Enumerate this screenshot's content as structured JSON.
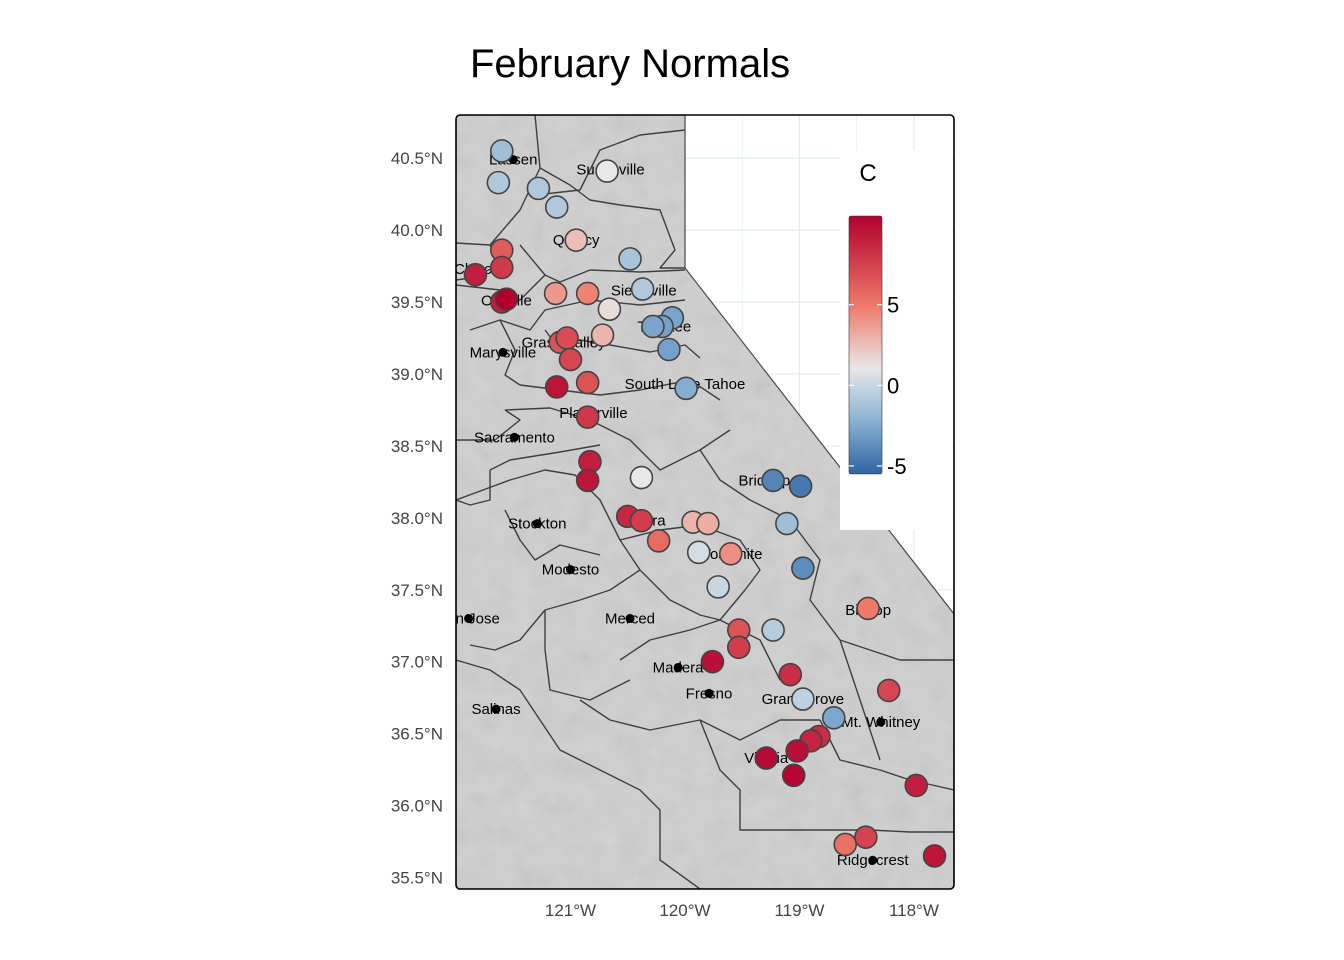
{
  "title": "February Normals",
  "legend": {
    "title": "C",
    "ticks": [
      {
        "value": -5,
        "label": "-5"
      },
      {
        "value": 0,
        "label": "0"
      },
      {
        "value": 5,
        "label": "5"
      }
    ],
    "range": [
      -5.5,
      10.5
    ],
    "colors": {
      "low": "#2f65a3",
      "mid": "#e8e8e8",
      "high": "#b2002e"
    }
  },
  "axes": {
    "x_ticks": [
      {
        "value": -121,
        "label": "121°W"
      },
      {
        "value": -120,
        "label": "120°W"
      },
      {
        "value": -119,
        "label": "119°W"
      },
      {
        "value": -118,
        "label": "118°W"
      }
    ],
    "y_ticks": [
      {
        "value": 40.5,
        "label": "40.5°N"
      },
      {
        "value": 40.0,
        "label": "40.0°N"
      },
      {
        "value": 39.5,
        "label": "39.5°N"
      },
      {
        "value": 39.0,
        "label": "39.0°N"
      },
      {
        "value": 38.5,
        "label": "38.5°N"
      },
      {
        "value": 38.0,
        "label": "38.0°N"
      },
      {
        "value": 37.5,
        "label": "37.5°N"
      },
      {
        "value": 37.0,
        "label": "37.0°N"
      },
      {
        "value": 36.5,
        "label": "36.5°N"
      },
      {
        "value": 36.0,
        "label": "36.0°N"
      },
      {
        "value": 35.5,
        "label": "35.5°N"
      }
    ],
    "xlim": [
      -122.0,
      -117.65
    ],
    "ylim": [
      35.42,
      40.8
    ]
  },
  "cities": [
    {
      "name": "Susanville",
      "label": "Susanville",
      "lon": -120.65,
      "lat": 40.42
    },
    {
      "name": "Lassen",
      "label": "Lassen",
      "lon": -121.5,
      "lat": 40.49
    },
    {
      "name": "Quincy",
      "label": "Quincy",
      "lon": -120.95,
      "lat": 39.93
    },
    {
      "name": "Chico",
      "label": "Chico",
      "lon": -121.85,
      "lat": 39.73
    },
    {
      "name": "Oroville",
      "label": "Oroville",
      "lon": -121.56,
      "lat": 39.51
    },
    {
      "name": "Sierraville",
      "label": "Sierraville",
      "lon": -120.36,
      "lat": 39.58
    },
    {
      "name": "Truckee",
      "label": "Truckee",
      "lon": -120.18,
      "lat": 39.33
    },
    {
      "name": "Grass Valley",
      "label": "Grass Valley",
      "lon": -121.06,
      "lat": 39.22
    },
    {
      "name": "Marysville",
      "label": "Marysville",
      "lon": -121.59,
      "lat": 39.15
    },
    {
      "name": "South Lake Tahoe",
      "label": "South Lake Tahoe",
      "lon": -120.0,
      "lat": 38.93
    },
    {
      "name": "Placerville",
      "label": "Placerville",
      "lon": -120.8,
      "lat": 38.73
    },
    {
      "name": "Sacramento",
      "label": "Sacramento",
      "lon": -121.49,
      "lat": 38.56
    },
    {
      "name": "Bridgeport",
      "label": "Bridgeport",
      "lon": -119.23,
      "lat": 38.26
    },
    {
      "name": "Sonora",
      "label": "Sonora",
      "lon": -120.38,
      "lat": 37.98
    },
    {
      "name": "Stockton",
      "label": "Stockton",
      "lon": -121.29,
      "lat": 37.96
    },
    {
      "name": "Yosemite",
      "label": "Yosemite",
      "lon": -119.59,
      "lat": 37.75
    },
    {
      "name": "Modesto",
      "label": "Modesto",
      "lon": -121.0,
      "lat": 37.64
    },
    {
      "name": "Bishop",
      "label": "Bishop",
      "lon": -118.4,
      "lat": 37.36
    },
    {
      "name": "San Jose",
      "label": "San Jose",
      "lon": -121.89,
      "lat": 37.3
    },
    {
      "name": "Merced",
      "label": "Merced",
      "lon": -120.48,
      "lat": 37.3
    },
    {
      "name": "Madera",
      "label": "Madera",
      "lon": -120.06,
      "lat": 36.96
    },
    {
      "name": "Fresno",
      "label": "Fresno",
      "lon": -119.79,
      "lat": 36.78
    },
    {
      "name": "Grant Grove",
      "label": "Grant Grove",
      "lon": -118.97,
      "lat": 36.74
    },
    {
      "name": "Salinas",
      "label": "Salinas",
      "lon": -121.65,
      "lat": 36.67
    },
    {
      "name": "Mt. Whitney",
      "label": "Mt. Whitney",
      "lon": -118.29,
      "lat": 36.58
    },
    {
      "name": "Visalia",
      "label": "Visalia",
      "lon": -119.29,
      "lat": 36.33
    },
    {
      "name": "Ridgecrest",
      "label": "Ridgecrest",
      "lon": -118.36,
      "lat": 35.62
    }
  ],
  "stations": [
    {
      "lon": -121.6,
      "lat": 40.55,
      "value": 0.5
    },
    {
      "lon": -121.63,
      "lat": 40.33,
      "value": 1.0
    },
    {
      "lon": -121.28,
      "lat": 40.29,
      "value": 1.0
    },
    {
      "lon": -121.12,
      "lat": 40.16,
      "value": 1.0
    },
    {
      "lon": -120.68,
      "lat": 40.41,
      "value": 2.8
    },
    {
      "lon": -120.95,
      "lat": 39.93,
      "value": 4.2
    },
    {
      "lon": -120.48,
      "lat": 39.8,
      "value": 0.8
    },
    {
      "lon": -121.6,
      "lat": 39.86,
      "value": 7.5
    },
    {
      "lon": -121.6,
      "lat": 39.74,
      "value": 8.6
    },
    {
      "lon": -121.83,
      "lat": 39.69,
      "value": 9.5
    },
    {
      "lon": -121.6,
      "lat": 39.5,
      "value": 9.5
    },
    {
      "lon": -121.56,
      "lat": 39.52,
      "value": 10.5
    },
    {
      "lon": -121.13,
      "lat": 39.56,
      "value": 5.5
    },
    {
      "lon": -120.85,
      "lat": 39.56,
      "value": 6.2
    },
    {
      "lon": -120.66,
      "lat": 39.45,
      "value": 3.2
    },
    {
      "lon": -120.37,
      "lat": 39.59,
      "value": 1.0
    },
    {
      "lon": -120.11,
      "lat": 39.39,
      "value": -1.2
    },
    {
      "lon": -120.2,
      "lat": 39.33,
      "value": -1.5
    },
    {
      "lon": -120.28,
      "lat": 39.33,
      "value": -1.2
    },
    {
      "lon": -120.14,
      "lat": 39.17,
      "value": -1.5
    },
    {
      "lon": -120.72,
      "lat": 39.27,
      "value": 4.5
    },
    {
      "lon": -121.09,
      "lat": 39.22,
      "value": 7.8
    },
    {
      "lon": -121.03,
      "lat": 39.25,
      "value": 8.0
    },
    {
      "lon": -121.0,
      "lat": 39.1,
      "value": 8.2
    },
    {
      "lon": -121.12,
      "lat": 38.91,
      "value": 9.8
    },
    {
      "lon": -120.85,
      "lat": 38.94,
      "value": 7.8
    },
    {
      "lon": -119.99,
      "lat": 38.9,
      "value": -0.6
    },
    {
      "lon": -120.85,
      "lat": 38.7,
      "value": 8.7
    },
    {
      "lon": -120.83,
      "lat": 38.39,
      "value": 9.5
    },
    {
      "lon": -120.85,
      "lat": 38.26,
      "value": 9.8
    },
    {
      "lon": -120.38,
      "lat": 38.28,
      "value": 2.8
    },
    {
      "lon": -120.5,
      "lat": 38.01,
      "value": 9.2
    },
    {
      "lon": -120.38,
      "lat": 37.98,
      "value": 8.5
    },
    {
      "lon": -120.23,
      "lat": 37.84,
      "value": 7.0
    },
    {
      "lon": -119.93,
      "lat": 37.97,
      "value": 4.5
    },
    {
      "lon": -119.8,
      "lat": 37.96,
      "value": 4.8
    },
    {
      "lon": -119.88,
      "lat": 37.76,
      "value": 2.2
    },
    {
      "lon": -119.6,
      "lat": 37.75,
      "value": 5.8
    },
    {
      "lon": -119.71,
      "lat": 37.52,
      "value": 1.8
    },
    {
      "lon": -119.23,
      "lat": 38.26,
      "value": -3.3
    },
    {
      "lon": -118.99,
      "lat": 38.22,
      "value": -4.2
    },
    {
      "lon": -119.11,
      "lat": 37.96,
      "value": 0.5
    },
    {
      "lon": -118.97,
      "lat": 37.65,
      "value": -2.8
    },
    {
      "lon": -118.4,
      "lat": 37.37,
      "value": 6.5
    },
    {
      "lon": -119.53,
      "lat": 37.22,
      "value": 7.8
    },
    {
      "lon": -119.23,
      "lat": 37.22,
      "value": 1.2
    },
    {
      "lon": -119.53,
      "lat": 37.1,
      "value": 8.5
    },
    {
      "lon": -119.76,
      "lat": 37.0,
      "value": 10.0
    },
    {
      "lon": -119.08,
      "lat": 36.91,
      "value": 9.0
    },
    {
      "lon": -118.97,
      "lat": 36.74,
      "value": 1.5
    },
    {
      "lon": -118.22,
      "lat": 36.8,
      "value": 8.2
    },
    {
      "lon": -118.7,
      "lat": 36.61,
      "value": -1.0
    },
    {
      "lon": -118.83,
      "lat": 36.48,
      "value": 9.0
    },
    {
      "lon": -118.9,
      "lat": 36.45,
      "value": 9.3
    },
    {
      "lon": -119.02,
      "lat": 36.38,
      "value": 10.0
    },
    {
      "lon": -119.29,
      "lat": 36.33,
      "value": 10.2
    },
    {
      "lon": -119.05,
      "lat": 36.21,
      "value": 10.3
    },
    {
      "lon": -117.98,
      "lat": 36.14,
      "value": 9.5
    },
    {
      "lon": -118.6,
      "lat": 35.73,
      "value": 6.8
    },
    {
      "lon": -118.42,
      "lat": 35.78,
      "value": 8.3
    },
    {
      "lon": -117.82,
      "lat": 35.65,
      "value": 9.8
    }
  ]
}
